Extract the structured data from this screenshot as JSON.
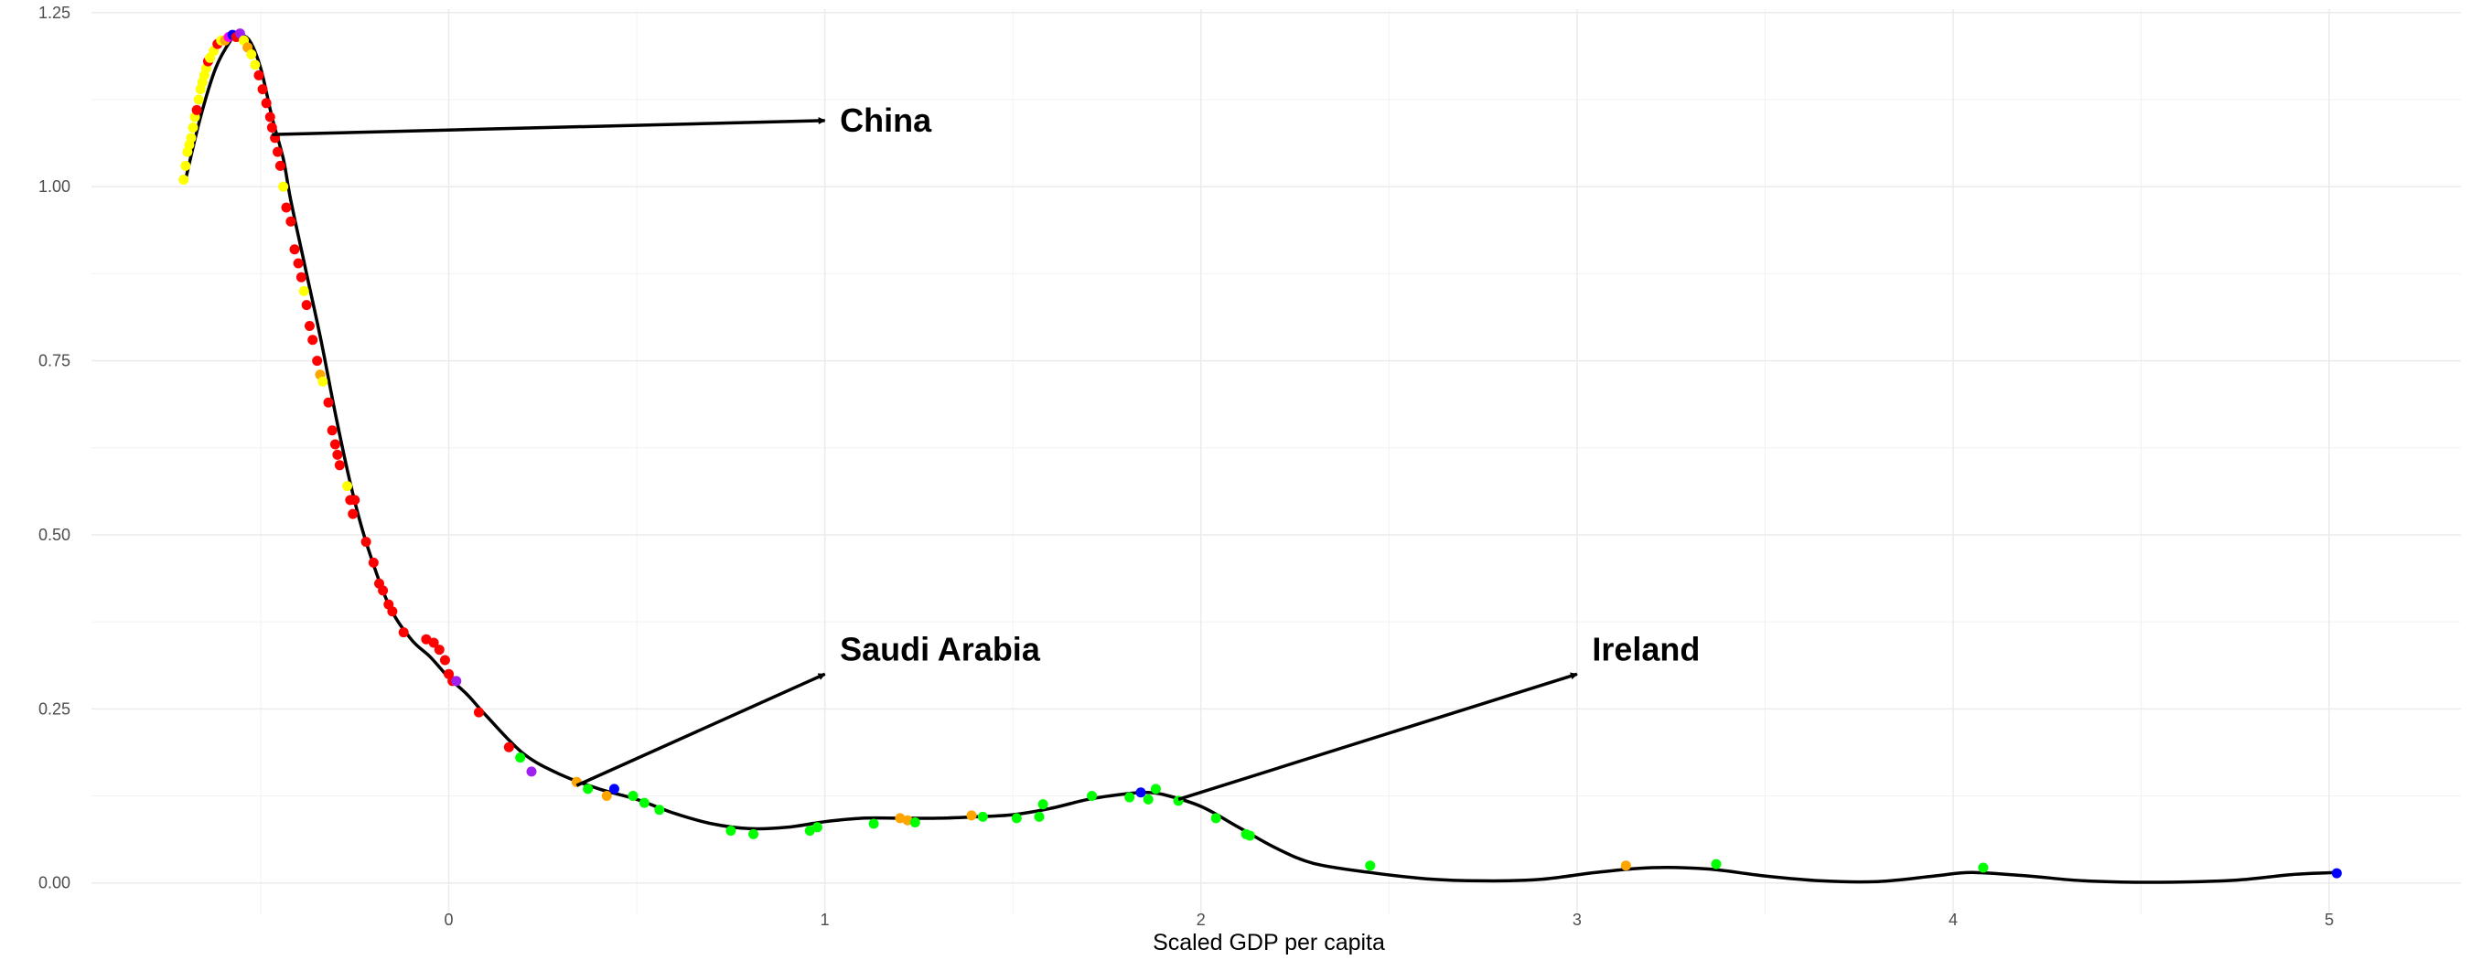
{
  "chart_data": {
    "type": "scatter",
    "title": "",
    "xlabel": "Scaled GDP per capita",
    "ylabel": "",
    "xlim": [
      -0.95,
      5.35
    ],
    "ylim": [
      -0.045,
      1.255
    ],
    "x_ticks": [
      0,
      1,
      2,
      3,
      4,
      5
    ],
    "x_tick_labels": [
      "0",
      "1",
      "2",
      "3",
      "4",
      "5"
    ],
    "y_ticks": [
      0,
      0.25,
      0.5,
      0.75,
      1.0,
      1.25
    ],
    "y_tick_labels": [
      "0.00",
      "0.25",
      "0.50",
      "0.75",
      "1.00",
      "1.25"
    ],
    "grid": true,
    "colors": {
      "yellow": "#ffff00",
      "red": "#ff0000",
      "orange": "#ffa500",
      "green": "#00ff00",
      "blue": "#0000ff",
      "purple": "#a020f0",
      "magenta": "#ff00ff",
      "curve": "#000000"
    },
    "smooth_curve": [
      [
        -0.7,
        1.01
      ],
      [
        -0.66,
        1.1
      ],
      [
        -0.62,
        1.17
      ],
      [
        -0.58,
        1.21
      ],
      [
        -0.56,
        1.218
      ],
      [
        -0.53,
        1.21
      ],
      [
        -0.5,
        1.17
      ],
      [
        -0.47,
        1.1
      ],
      [
        -0.44,
        1.04
      ],
      [
        -0.42,
        0.98
      ],
      [
        -0.38,
        0.88
      ],
      [
        -0.34,
        0.78
      ],
      [
        -0.3,
        0.67
      ],
      [
        -0.26,
        0.57
      ],
      [
        -0.22,
        0.49
      ],
      [
        -0.16,
        0.4
      ],
      [
        -0.1,
        0.35
      ],
      [
        -0.05,
        0.325
      ],
      [
        0.0,
        0.295
      ],
      [
        0.05,
        0.27
      ],
      [
        0.1,
        0.24
      ],
      [
        0.2,
        0.185
      ],
      [
        0.3,
        0.155
      ],
      [
        0.4,
        0.135
      ],
      [
        0.5,
        0.12
      ],
      [
        0.6,
        0.1
      ],
      [
        0.7,
        0.085
      ],
      [
        0.8,
        0.078
      ],
      [
        0.9,
        0.08
      ],
      [
        1.0,
        0.088
      ],
      [
        1.1,
        0.093
      ],
      [
        1.2,
        0.093
      ],
      [
        1.3,
        0.093
      ],
      [
        1.4,
        0.095
      ],
      [
        1.5,
        0.098
      ],
      [
        1.6,
        0.107
      ],
      [
        1.7,
        0.12
      ],
      [
        1.8,
        0.128
      ],
      [
        1.85,
        0.13
      ],
      [
        1.9,
        0.127
      ],
      [
        2.0,
        0.11
      ],
      [
        2.1,
        0.08
      ],
      [
        2.2,
        0.05
      ],
      [
        2.3,
        0.028
      ],
      [
        2.45,
        0.015
      ],
      [
        2.6,
        0.006
      ],
      [
        2.75,
        0.003
      ],
      [
        2.9,
        0.005
      ],
      [
        3.05,
        0.015
      ],
      [
        3.2,
        0.022
      ],
      [
        3.35,
        0.02
      ],
      [
        3.5,
        0.01
      ],
      [
        3.65,
        0.003
      ],
      [
        3.8,
        0.002
      ],
      [
        3.95,
        0.01
      ],
      [
        4.05,
        0.015
      ],
      [
        4.2,
        0.01
      ],
      [
        4.35,
        0.003
      ],
      [
        4.55,
        0.001
      ],
      [
        4.75,
        0.004
      ],
      [
        4.9,
        0.012
      ],
      [
        5.02,
        0.015
      ]
    ],
    "points": [
      {
        "x": -0.705,
        "y": 1.01,
        "color": "yellow"
      },
      {
        "x": -0.7,
        "y": 1.03,
        "color": "yellow"
      },
      {
        "x": -0.695,
        "y": 1.05,
        "color": "yellow"
      },
      {
        "x": -0.69,
        "y": 1.06,
        "color": "yellow"
      },
      {
        "x": -0.685,
        "y": 1.07,
        "color": "yellow"
      },
      {
        "x": -0.68,
        "y": 1.085,
        "color": "yellow"
      },
      {
        "x": -0.675,
        "y": 1.1,
        "color": "yellow"
      },
      {
        "x": -0.67,
        "y": 1.11,
        "color": "red"
      },
      {
        "x": -0.665,
        "y": 1.125,
        "color": "yellow"
      },
      {
        "x": -0.66,
        "y": 1.14,
        "color": "yellow"
      },
      {
        "x": -0.655,
        "y": 1.15,
        "color": "yellow"
      },
      {
        "x": -0.65,
        "y": 1.16,
        "color": "yellow"
      },
      {
        "x": -0.645,
        "y": 1.17,
        "color": "yellow"
      },
      {
        "x": -0.64,
        "y": 1.18,
        "color": "red"
      },
      {
        "x": -0.635,
        "y": 1.185,
        "color": "yellow"
      },
      {
        "x": -0.625,
        "y": 1.195,
        "color": "yellow"
      },
      {
        "x": -0.615,
        "y": 1.205,
        "color": "red"
      },
      {
        "x": -0.605,
        "y": 1.21,
        "color": "yellow"
      },
      {
        "x": -0.595,
        "y": 1.21,
        "color": "orange"
      },
      {
        "x": -0.585,
        "y": 1.215,
        "color": "magenta"
      },
      {
        "x": -0.575,
        "y": 1.218,
        "color": "blue"
      },
      {
        "x": -0.565,
        "y": 1.215,
        "color": "red"
      },
      {
        "x": -0.555,
        "y": 1.22,
        "color": "purple"
      },
      {
        "x": -0.545,
        "y": 1.21,
        "color": "yellow"
      },
      {
        "x": -0.535,
        "y": 1.2,
        "color": "orange"
      },
      {
        "x": -0.525,
        "y": 1.19,
        "color": "yellow"
      },
      {
        "x": -0.515,
        "y": 1.175,
        "color": "yellow"
      },
      {
        "x": -0.505,
        "y": 1.16,
        "color": "red"
      },
      {
        "x": -0.495,
        "y": 1.14,
        "color": "red"
      },
      {
        "x": -0.485,
        "y": 1.12,
        "color": "red"
      },
      {
        "x": -0.475,
        "y": 1.1,
        "color": "red"
      },
      {
        "x": -0.47,
        "y": 1.085,
        "color": "red"
      },
      {
        "x": -0.462,
        "y": 1.07,
        "color": "red"
      },
      {
        "x": -0.455,
        "y": 1.05,
        "color": "red"
      },
      {
        "x": -0.448,
        "y": 1.03,
        "color": "red"
      },
      {
        "x": -0.44,
        "y": 1.0,
        "color": "yellow"
      },
      {
        "x": -0.432,
        "y": 0.97,
        "color": "red"
      },
      {
        "x": -0.42,
        "y": 0.95,
        "color": "red"
      },
      {
        "x": -0.41,
        "y": 0.91,
        "color": "red"
      },
      {
        "x": -0.4,
        "y": 0.89,
        "color": "red"
      },
      {
        "x": -0.392,
        "y": 0.87,
        "color": "red"
      },
      {
        "x": -0.385,
        "y": 0.85,
        "color": "yellow"
      },
      {
        "x": -0.378,
        "y": 0.83,
        "color": "red"
      },
      {
        "x": -0.37,
        "y": 0.8,
        "color": "red"
      },
      {
        "x": -0.362,
        "y": 0.78,
        "color": "red"
      },
      {
        "x": -0.35,
        "y": 0.75,
        "color": "red"
      },
      {
        "x": -0.342,
        "y": 0.73,
        "color": "orange"
      },
      {
        "x": -0.335,
        "y": 0.72,
        "color": "yellow"
      },
      {
        "x": -0.32,
        "y": 0.69,
        "color": "red"
      },
      {
        "x": -0.31,
        "y": 0.65,
        "color": "red"
      },
      {
        "x": -0.302,
        "y": 0.63,
        "color": "red"
      },
      {
        "x": -0.296,
        "y": 0.615,
        "color": "red"
      },
      {
        "x": -0.29,
        "y": 0.6,
        "color": "red"
      },
      {
        "x": -0.27,
        "y": 0.57,
        "color": "yellow"
      },
      {
        "x": -0.262,
        "y": 0.55,
        "color": "red"
      },
      {
        "x": -0.255,
        "y": 0.53,
        "color": "red"
      },
      {
        "x": -0.25,
        "y": 0.55,
        "color": "red"
      },
      {
        "x": -0.22,
        "y": 0.49,
        "color": "red"
      },
      {
        "x": -0.2,
        "y": 0.46,
        "color": "red"
      },
      {
        "x": -0.185,
        "y": 0.43,
        "color": "red"
      },
      {
        "x": -0.175,
        "y": 0.42,
        "color": "red"
      },
      {
        "x": -0.16,
        "y": 0.4,
        "color": "red"
      },
      {
        "x": -0.15,
        "y": 0.39,
        "color": "red"
      },
      {
        "x": -0.12,
        "y": 0.36,
        "color": "red"
      },
      {
        "x": -0.06,
        "y": 0.35,
        "color": "red"
      },
      {
        "x": -0.04,
        "y": 0.345,
        "color": "red"
      },
      {
        "x": -0.025,
        "y": 0.335,
        "color": "red"
      },
      {
        "x": -0.01,
        "y": 0.32,
        "color": "red"
      },
      {
        "x": 0.0,
        "y": 0.3,
        "color": "red"
      },
      {
        "x": 0.01,
        "y": 0.29,
        "color": "red"
      },
      {
        "x": 0.02,
        "y": 0.29,
        "color": "purple"
      },
      {
        "x": 0.08,
        "y": 0.245,
        "color": "red"
      },
      {
        "x": 0.16,
        "y": 0.195,
        "color": "red"
      },
      {
        "x": 0.19,
        "y": 0.18,
        "color": "green"
      },
      {
        "x": 0.22,
        "y": 0.16,
        "color": "purple"
      },
      {
        "x": 0.34,
        "y": 0.145,
        "color": "orange"
      },
      {
        "x": 0.37,
        "y": 0.135,
        "color": "green"
      },
      {
        "x": 0.42,
        "y": 0.125,
        "color": "orange"
      },
      {
        "x": 0.44,
        "y": 0.135,
        "color": "blue"
      },
      {
        "x": 0.49,
        "y": 0.125,
        "color": "green"
      },
      {
        "x": 0.52,
        "y": 0.115,
        "color": "green"
      },
      {
        "x": 0.56,
        "y": 0.105,
        "color": "green"
      },
      {
        "x": 0.75,
        "y": 0.075,
        "color": "green"
      },
      {
        "x": 0.81,
        "y": 0.07,
        "color": "green"
      },
      {
        "x": 0.96,
        "y": 0.075,
        "color": "green"
      },
      {
        "x": 0.98,
        "y": 0.08,
        "color": "green"
      },
      {
        "x": 1.13,
        "y": 0.085,
        "color": "green"
      },
      {
        "x": 1.2,
        "y": 0.093,
        "color": "orange"
      },
      {
        "x": 1.22,
        "y": 0.09,
        "color": "orange"
      },
      {
        "x": 1.24,
        "y": 0.087,
        "color": "green"
      },
      {
        "x": 1.39,
        "y": 0.097,
        "color": "orange"
      },
      {
        "x": 1.42,
        "y": 0.095,
        "color": "green"
      },
      {
        "x": 1.51,
        "y": 0.093,
        "color": "green"
      },
      {
        "x": 1.57,
        "y": 0.095,
        "color": "green"
      },
      {
        "x": 1.58,
        "y": 0.113,
        "color": "green"
      },
      {
        "x": 1.71,
        "y": 0.125,
        "color": "green"
      },
      {
        "x": 1.81,
        "y": 0.123,
        "color": "green"
      },
      {
        "x": 1.84,
        "y": 0.13,
        "color": "blue"
      },
      {
        "x": 1.86,
        "y": 0.12,
        "color": "green"
      },
      {
        "x": 1.88,
        "y": 0.135,
        "color": "green"
      },
      {
        "x": 1.94,
        "y": 0.118,
        "color": "green"
      },
      {
        "x": 2.04,
        "y": 0.093,
        "color": "green"
      },
      {
        "x": 2.12,
        "y": 0.07,
        "color": "green"
      },
      {
        "x": 2.13,
        "y": 0.068,
        "color": "green"
      },
      {
        "x": 2.45,
        "y": 0.025,
        "color": "green"
      },
      {
        "x": 3.13,
        "y": 0.025,
        "color": "orange"
      },
      {
        "x": 3.37,
        "y": 0.027,
        "color": "green"
      },
      {
        "x": 4.08,
        "y": 0.022,
        "color": "green"
      },
      {
        "x": 5.02,
        "y": 0.014,
        "color": "blue"
      }
    ],
    "annotations": [
      {
        "label": "China",
        "from": [
          -0.47,
          1.075
        ],
        "to": [
          1.0,
          1.095
        ],
        "text_at": [
          1.04,
          1.095
        ]
      },
      {
        "label": "Saudi Arabia",
        "from": [
          0.34,
          0.14
        ],
        "to": [
          1.0,
          0.3
        ],
        "text_at": [
          1.04,
          0.335
        ]
      },
      {
        "label": "Ireland",
        "from": [
          1.94,
          0.12
        ],
        "to": [
          3.0,
          0.3
        ],
        "text_at": [
          3.04,
          0.335
        ]
      }
    ]
  }
}
